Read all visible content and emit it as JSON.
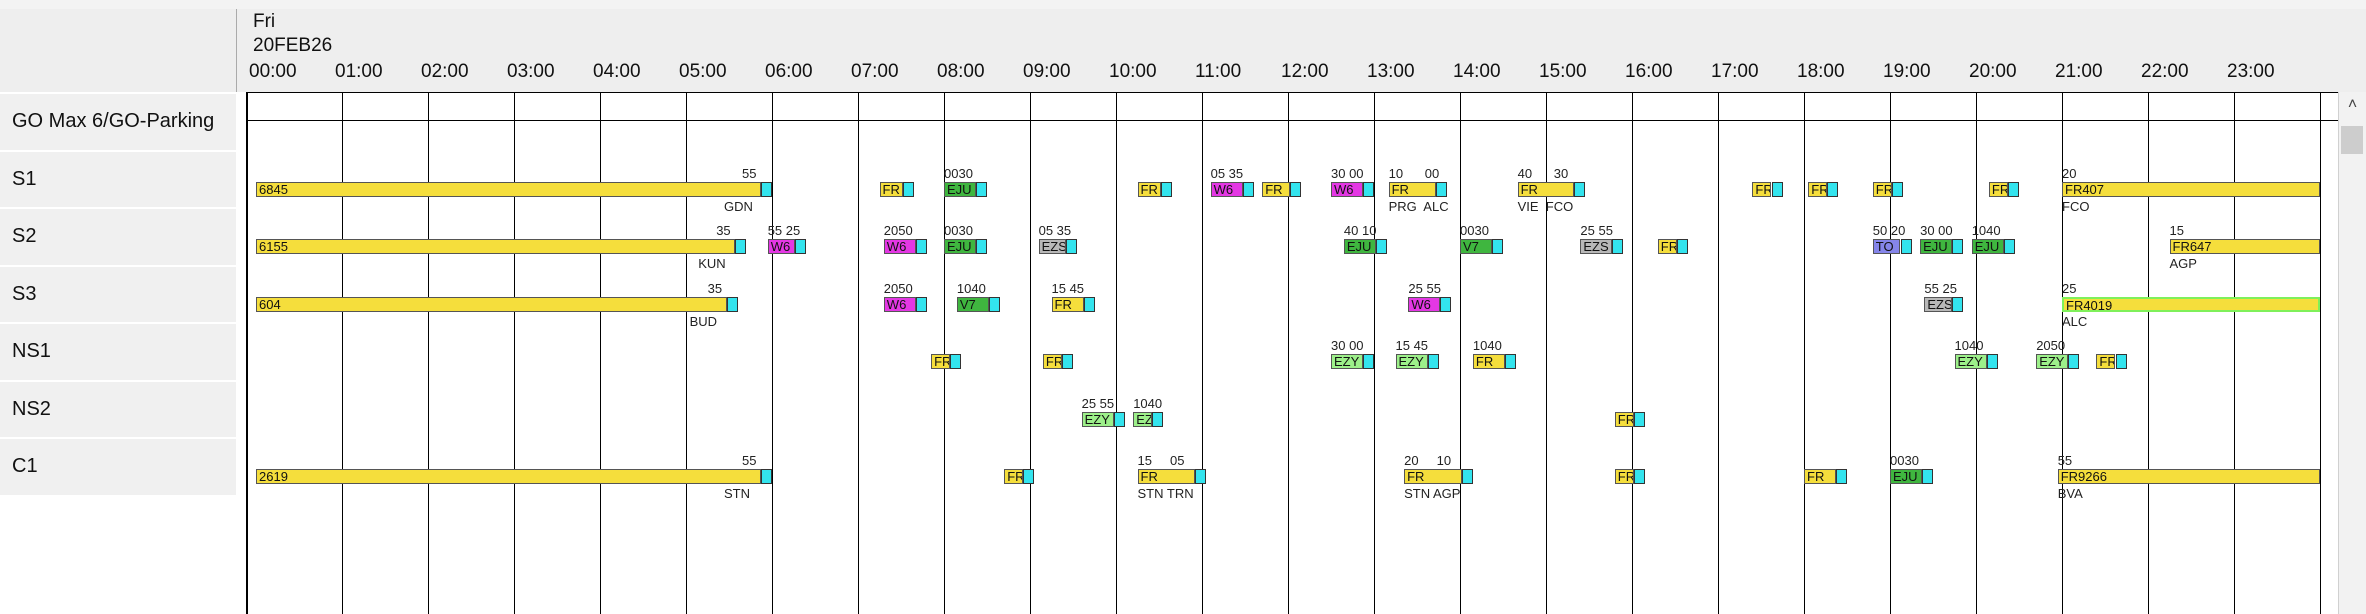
{
  "header": {
    "day": "Fri",
    "date": "20FEB26",
    "hours": [
      "00:00",
      "01:00",
      "02:00",
      "03:00",
      "04:00",
      "05:00",
      "06:00",
      "07:00",
      "08:00",
      "09:00",
      "10:00",
      "11:00",
      "12:00",
      "13:00",
      "14:00",
      "15:00",
      "16:00",
      "17:00",
      "18:00",
      "19:00",
      "20:00",
      "21:00",
      "22:00",
      "23:00"
    ]
  },
  "rows": [
    "GO Max 6/GO-Parking",
    "S1",
    "S2",
    "S3",
    "NS1",
    "NS2",
    "C1"
  ],
  "colors": {
    "yellow": "#f5de3c",
    "magenta": "#e437e4",
    "green": "#3fb63f",
    "gray": "#b8b8b8",
    "lightgreen": "#9df08a",
    "blue": "#8585ea",
    "lime_outline": "#7ff05a",
    "tail": "#33e4ee"
  },
  "bars": [
    {
      "row": 1,
      "start": 0.0,
      "end": 6.0,
      "label": "6845",
      "color": "yellow",
      "top": "55",
      "bottom": "GDN"
    },
    {
      "row": 1,
      "start": 7.25,
      "end": 7.65,
      "label": "FR",
      "color": "yellow"
    },
    {
      "row": 1,
      "start": 8.0,
      "end": 8.5,
      "label": "EJU",
      "color": "green",
      "top": "0030"
    },
    {
      "row": 1,
      "start": 10.25,
      "end": 10.65,
      "label": "FR",
      "color": "yellow"
    },
    {
      "row": 1,
      "start": 11.1,
      "end": 11.6,
      "label": "W6",
      "color": "magenta",
      "top": "05 35"
    },
    {
      "row": 1,
      "start": 11.7,
      "end": 12.15,
      "label": "FR",
      "color": "yellow"
    },
    {
      "row": 1,
      "start": 12.5,
      "end": 13.0,
      "label": "W6",
      "color": "magenta",
      "top": "30 00"
    },
    {
      "row": 1,
      "start": 13.17,
      "end": 13.85,
      "label": "FR",
      "color": "yellow",
      "top": "10      00",
      "bottom": "PRG  ALC"
    },
    {
      "row": 1,
      "start": 14.67,
      "end": 15.45,
      "label": "FR",
      "color": "yellow",
      "top": "40      30",
      "bottom": "VIE  FCO"
    },
    {
      "row": 1,
      "start": 17.4,
      "end": 17.75,
      "label": "FR",
      "color": "yellow"
    },
    {
      "row": 1,
      "start": 18.05,
      "end": 18.4,
      "label": "FR",
      "color": "yellow"
    },
    {
      "row": 1,
      "start": 18.8,
      "end": 19.15,
      "label": "FR",
      "color": "yellow"
    },
    {
      "row": 1,
      "start": 20.15,
      "end": 20.5,
      "label": "FR",
      "color": "yellow"
    },
    {
      "row": 1,
      "start": 21.0,
      "end": 24.0,
      "label": "FR407",
      "color": "yellow",
      "top": "20",
      "bottom": "FCO",
      "open": true
    },
    {
      "row": 2,
      "start": 0.0,
      "end": 5.7,
      "label": "6155",
      "color": "yellow",
      "top": "35",
      "bottom": "KUN"
    },
    {
      "row": 2,
      "start": 5.95,
      "end": 6.4,
      "label": "W6",
      "color": "magenta",
      "top": "55 25"
    },
    {
      "row": 2,
      "start": 7.3,
      "end": 7.8,
      "label": "W6",
      "color": "magenta",
      "top": "2050"
    },
    {
      "row": 2,
      "start": 8.0,
      "end": 8.5,
      "label": "EJU",
      "color": "green",
      "top": "0030"
    },
    {
      "row": 2,
      "start": 9.1,
      "end": 9.55,
      "label": "EZS",
      "color": "gray",
      "top": "05 35"
    },
    {
      "row": 2,
      "start": 12.65,
      "end": 13.15,
      "label": "EJU",
      "color": "green",
      "top": "40 10"
    },
    {
      "row": 2,
      "start": 14.0,
      "end": 14.5,
      "label": "V7",
      "color": "green",
      "top": "0030"
    },
    {
      "row": 2,
      "start": 15.4,
      "end": 15.9,
      "label": "EZS",
      "color": "gray",
      "top": "25 55"
    },
    {
      "row": 2,
      "start": 16.3,
      "end": 16.65,
      "label": "FR",
      "color": "yellow"
    },
    {
      "row": 2,
      "start": 18.8,
      "end": 19.25,
      "label": "TO",
      "color": "blue",
      "top": "50 20"
    },
    {
      "row": 2,
      "start": 19.35,
      "end": 19.85,
      "label": "EJU",
      "color": "green",
      "top": "30 00"
    },
    {
      "row": 2,
      "start": 19.95,
      "end": 20.45,
      "label": "EJU",
      "color": "green",
      "top": "1040"
    },
    {
      "row": 2,
      "start": 22.25,
      "end": 24.0,
      "label": "FR647",
      "color": "yellow",
      "top": "15",
      "bottom": "AGP",
      "open": true
    },
    {
      "row": 3,
      "start": 0.0,
      "end": 5.6,
      "label": "604",
      "color": "yellow",
      "top": "35",
      "bottom": "BUD"
    },
    {
      "row": 3,
      "start": 7.3,
      "end": 7.8,
      "label": "W6",
      "color": "magenta",
      "top": "2050"
    },
    {
      "row": 3,
      "start": 8.15,
      "end": 8.65,
      "label": "V7",
      "color": "green",
      "top": "1040"
    },
    {
      "row": 3,
      "start": 9.25,
      "end": 9.75,
      "label": "FR",
      "color": "yellow",
      "top": "15 45"
    },
    {
      "row": 3,
      "start": 13.4,
      "end": 13.9,
      "label": "W6",
      "color": "magenta",
      "top": "25 55"
    },
    {
      "row": 3,
      "start": 19.4,
      "end": 19.85,
      "label": "EZS",
      "color": "gray",
      "top": "55 25"
    },
    {
      "row": 3,
      "start": 21.0,
      "end": 24.0,
      "label": "FR4019",
      "color": "yellow",
      "top": "25",
      "bottom": "ALC",
      "open": true,
      "lime": true
    },
    {
      "row": 4,
      "start": 7.85,
      "end": 8.2,
      "label": "FR",
      "color": "yellow"
    },
    {
      "row": 4,
      "start": 9.15,
      "end": 9.5,
      "label": "FR",
      "color": "yellow"
    },
    {
      "row": 4,
      "start": 12.5,
      "end": 13.0,
      "label": "EZY",
      "color": "lightgreen",
      "top": "30 00"
    },
    {
      "row": 4,
      "start": 13.25,
      "end": 13.75,
      "label": "EZY",
      "color": "lightgreen",
      "top": "15 45"
    },
    {
      "row": 4,
      "start": 14.15,
      "end": 14.65,
      "label": "FR",
      "color": "yellow",
      "top": "1040"
    },
    {
      "row": 4,
      "start": 19.75,
      "end": 20.25,
      "label": "EZY",
      "color": "lightgreen",
      "top": "1040"
    },
    {
      "row": 4,
      "start": 20.7,
      "end": 21.2,
      "label": "EZY",
      "color": "lightgreen",
      "top": "2050"
    },
    {
      "row": 4,
      "start": 21.4,
      "end": 21.75,
      "label": "FR",
      "color": "yellow"
    },
    {
      "row": 5,
      "start": 9.6,
      "end": 10.1,
      "label": "EZY",
      "color": "lightgreen",
      "top": "25 55"
    },
    {
      "row": 5,
      "start": 10.2,
      "end": 10.55,
      "label": "EZY",
      "color": "lightgreen",
      "top": "1040"
    },
    {
      "row": 5,
      "start": 15.8,
      "end": 16.15,
      "label": "FR",
      "color": "yellow"
    },
    {
      "row": 6,
      "start": 0.0,
      "end": 6.0,
      "label": "2619",
      "color": "yellow",
      "top": "55",
      "bottom": "STN"
    },
    {
      "row": 6,
      "start": 8.7,
      "end": 9.05,
      "label": "FR",
      "color": "yellow"
    },
    {
      "row": 6,
      "start": 10.25,
      "end": 11.05,
      "label": "FR",
      "color": "yellow",
      "top": "15     05",
      "bottom": "STN TRN"
    },
    {
      "row": 6,
      "start": 13.35,
      "end": 14.15,
      "label": "FR",
      "color": "yellow",
      "top": "20     10",
      "bottom": "STN AGP"
    },
    {
      "row": 6,
      "start": 15.8,
      "end": 16.15,
      "label": "FR",
      "color": "yellow"
    },
    {
      "row": 6,
      "start": 18.0,
      "end": 18.5,
      "label": "FR",
      "color": "yellow"
    },
    {
      "row": 6,
      "start": 19.0,
      "end": 19.5,
      "label": "EJU",
      "color": "green",
      "top": "0030"
    },
    {
      "row": 6,
      "start": 20.95,
      "end": 24.0,
      "label": "FR9266",
      "color": "yellow",
      "top": "55",
      "bottom": "BVA",
      "open": true
    }
  ]
}
